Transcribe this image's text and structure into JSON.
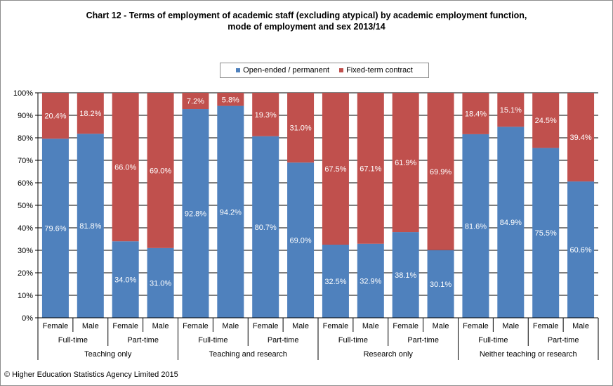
{
  "chart_data": {
    "type": "bar",
    "stacked": true,
    "title_line1": "Chart 12 - Terms of employment of academic staff (excluding atypical) by academic employment function,",
    "title_line2": "mode of employment and sex 2013/14",
    "ylim": [
      0,
      100
    ],
    "yticks": [
      "0%",
      "10%",
      "20%",
      "30%",
      "40%",
      "50%",
      "60%",
      "70%",
      "80%",
      "90%",
      "100%"
    ],
    "grid": true,
    "legend_position": "top",
    "categories": [
      "Female",
      "Male",
      "Female",
      "Male",
      "Female",
      "Male",
      "Female",
      "Male",
      "Female",
      "Male",
      "Female",
      "Male",
      "Female",
      "Male",
      "Female",
      "Male"
    ],
    "modes": [
      "Full-time",
      "Part-time",
      "Full-time",
      "Part-time",
      "Full-time",
      "Part-time",
      "Full-time",
      "Part-time"
    ],
    "functions": [
      "Teaching only",
      "Teaching and research",
      "Research only",
      "Neither teaching or research"
    ],
    "series": [
      {
        "name": "Open-ended / permanent",
        "color": "#4f81bd",
        "values": [
          79.6,
          81.8,
          34.0,
          31.0,
          92.8,
          94.2,
          80.7,
          69.0,
          32.5,
          32.9,
          38.1,
          30.1,
          81.6,
          84.9,
          75.5,
          60.6
        ],
        "labels": [
          "79.6%",
          "81.8%",
          "34.0%",
          "31.0%",
          "92.8%",
          "94.2%",
          "80.7%",
          "69.0%",
          "32.5%",
          "32.9%",
          "38.1%",
          "30.1%",
          "81.6%",
          "84.9%",
          "75.5%",
          "60.6%"
        ]
      },
      {
        "name": "Fixed-term contract",
        "color": "#c0504d",
        "values": [
          20.4,
          18.2,
          66.0,
          69.0,
          7.2,
          5.8,
          19.3,
          31.0,
          67.5,
          67.1,
          61.9,
          69.9,
          18.4,
          15.1,
          24.5,
          39.4
        ],
        "labels": [
          "20.4%",
          "18.2%",
          "66.0%",
          "69.0%",
          "7.2%",
          "5.8%",
          "19.3%",
          "31.0%",
          "67.5%",
          "67.1%",
          "61.9%",
          "69.9%",
          "18.4%",
          "15.1%",
          "24.5%",
          "39.4%"
        ]
      }
    ]
  },
  "copyright": "© Higher Education Statistics Agency Limited 2015"
}
